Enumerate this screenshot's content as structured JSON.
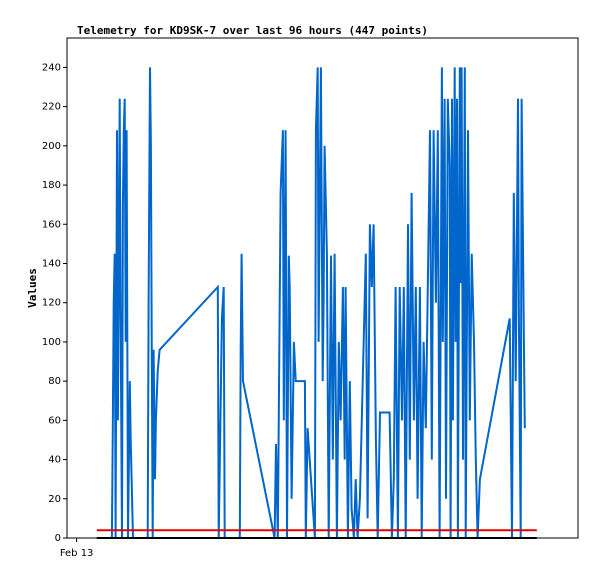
{
  "chart_data": {
    "type": "line",
    "title": "Telemetry for KD9SK-7 over last 96 hours (447 points)",
    "y_label": "Values",
    "xlim": [
      -6.5,
      105
    ],
    "xticks": [
      {
        "value": -4.4,
        "label": "Feb 13"
      }
    ],
    "ylim": [
      0,
      255
    ],
    "yticks": [
      0,
      20,
      40,
      60,
      80,
      100,
      120,
      140,
      160,
      180,
      200,
      220,
      240
    ],
    "grid": false,
    "series": [
      {
        "color": "#0066cc",
        "x": [
          3.3,
          3.5,
          3.7,
          3.9,
          4.1,
          4.4,
          4.6,
          5.0,
          5.2,
          5.5,
          5.7,
          5.9,
          6.1,
          6.3,
          6.5,
          6.8,
          7.2,
          7.4,
          7.9,
          11.1,
          11.3,
          11.6,
          11.8,
          12.0,
          12.2,
          12.4,
          12.7,
          12.9,
          13.3,
          13.7,
          26.4,
          26.6,
          27.3,
          27.7,
          27.9,
          31.2,
          31.4,
          31.6,
          31.9,
          38.8,
          39.1,
          39.5,
          40.1,
          40.6,
          40.8,
          41.2,
          41.5,
          41.9,
          42.1,
          42.5,
          43.0,
          43.4,
          45.4,
          45.6,
          46.0,
          47.6,
          47.8,
          48.2,
          48.4,
          48.9,
          49.1,
          49.3,
          49.5,
          49.7,
          50.2,
          50.6,
          51.1,
          51.5,
          51.9,
          52.4,
          52.8,
          53.2,
          53.7,
          54.1,
          54.3,
          54.8,
          55.2,
          55.6,
          56.1,
          56.5,
          56.9,
          57.4,
          58.7,
          59.1,
          59.6,
          60.0,
          60.4,
          60.9,
          61.3,
          61.8,
          63.9,
          64.4,
          64.8,
          65.2,
          65.7,
          66.1,
          66.6,
          67.0,
          67.4,
          67.9,
          68.3,
          68.7,
          69.2,
          69.6,
          70.0,
          70.5,
          70.9,
          71.3,
          71.8,
          72.7,
          73.1,
          73.5,
          74.0,
          74.4,
          74.8,
          75.3,
          75.5,
          75.9,
          76.2,
          76.6,
          77.0,
          77.2,
          77.5,
          77.7,
          78.1,
          78.3,
          78.6,
          78.8,
          79.2,
          79.4,
          79.6,
          79.9,
          80.3,
          80.5,
          81.0,
          81.4,
          81.8,
          82.3,
          82.7,
          83.1,
          83.6,
          90.1,
          90.6,
          91.0,
          91.4,
          91.9,
          92.1,
          92.5,
          92.7,
          93.2,
          93.4
        ],
        "values": [
          0,
          56,
          120,
          145,
          0,
          208,
          60,
          224,
          112,
          0,
          170,
          208,
          224,
          100,
          208,
          0,
          80,
          50,
          0,
          0,
          120,
          240,
          200,
          90,
          0,
          96,
          30,
          60,
          85,
          96,
          128,
          0,
          112,
          128,
          0,
          0,
          97,
          145,
          80,
          0,
          48,
          0,
          176,
          208,
          60,
          208,
          0,
          144,
          128,
          20,
          100,
          80,
          80,
          0,
          56,
          0,
          208,
          240,
          100,
          240,
          160,
          80,
          120,
          200,
          145,
          0,
          144,
          40,
          145,
          0,
          100,
          60,
          128,
          40,
          128,
          0,
          80,
          15,
          0,
          30,
          0,
          20,
          145,
          10,
          160,
          128,
          160,
          50,
          0,
          64,
          64,
          0,
          30,
          128,
          0,
          128,
          60,
          128,
          0,
          160,
          40,
          176,
          60,
          128,
          20,
          128,
          0,
          100,
          56,
          208,
          40,
          208,
          120,
          208,
          0,
          240,
          100,
          224,
          20,
          224,
          190,
          0,
          224,
          60,
          240,
          100,
          224,
          0,
          240,
          130,
          240,
          40,
          240,
          0,
          208,
          60,
          145,
          100,
          40,
          0,
          30,
          112,
          0,
          176,
          80,
          224,
          112,
          0,
          224,
          100,
          56
        ]
      },
      {
        "color": "#000000",
        "x": [
          0,
          96
        ],
        "values": [
          0,
          0
        ]
      },
      {
        "color": "#e00000",
        "x": [
          0,
          96
        ],
        "values": [
          4,
          4
        ]
      }
    ]
  }
}
